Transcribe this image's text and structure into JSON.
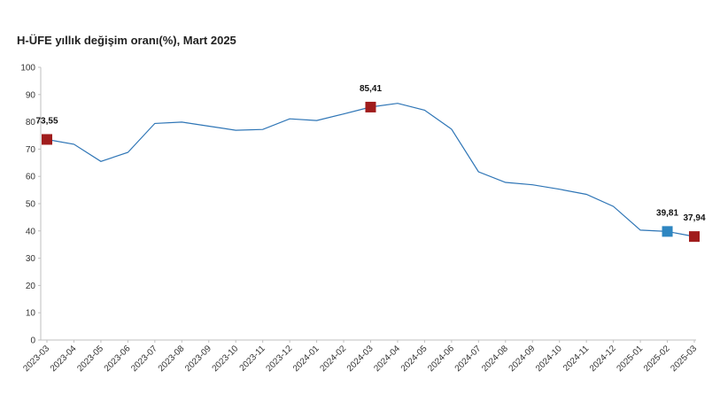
{
  "chart_data": {
    "type": "line",
    "title": "H-ÜFE yıllık değişim oranı(%), Mart 2025",
    "xlabel": "",
    "ylabel": "",
    "ylim": [
      0,
      100
    ],
    "yticks": [
      0,
      10,
      20,
      30,
      40,
      50,
      60,
      70,
      80,
      90,
      100
    ],
    "grid": false,
    "legend": "none",
    "categories": [
      "2023-03",
      "2023-04",
      "2023-05",
      "2023-06",
      "2023-07",
      "2023-08",
      "2023-09",
      "2023-10",
      "2023-11",
      "2023-12",
      "2024-01",
      "2024-02",
      "2024-03",
      "2024-04",
      "2024-05",
      "2024-06",
      "2024-07",
      "2024-08",
      "2024-09",
      "2024-10",
      "2024-11",
      "2024-12",
      "2025-01",
      "2025-02",
      "2025-03"
    ],
    "series": [
      {
        "values": [
          73.55,
          71.8,
          65.5,
          68.8,
          79.4,
          79.9,
          78.4,
          76.9,
          77.2,
          81.1,
          80.5,
          82.9,
          85.41,
          86.8,
          84.3,
          77.3,
          61.7,
          57.8,
          56.9,
          55.3,
          53.4,
          49.0,
          40.3,
          39.81,
          37.94
        ],
        "color": "#2E75B6"
      }
    ],
    "markers": [
      {
        "index": 0,
        "label": "73,55",
        "color": "#A01C1C"
      },
      {
        "index": 12,
        "label": "85,41",
        "color": "#A01C1C"
      },
      {
        "index": 23,
        "label": "39,81",
        "color": "#2E86C1"
      },
      {
        "index": 24,
        "label": "37,94",
        "color": "#A01C1C"
      }
    ]
  }
}
